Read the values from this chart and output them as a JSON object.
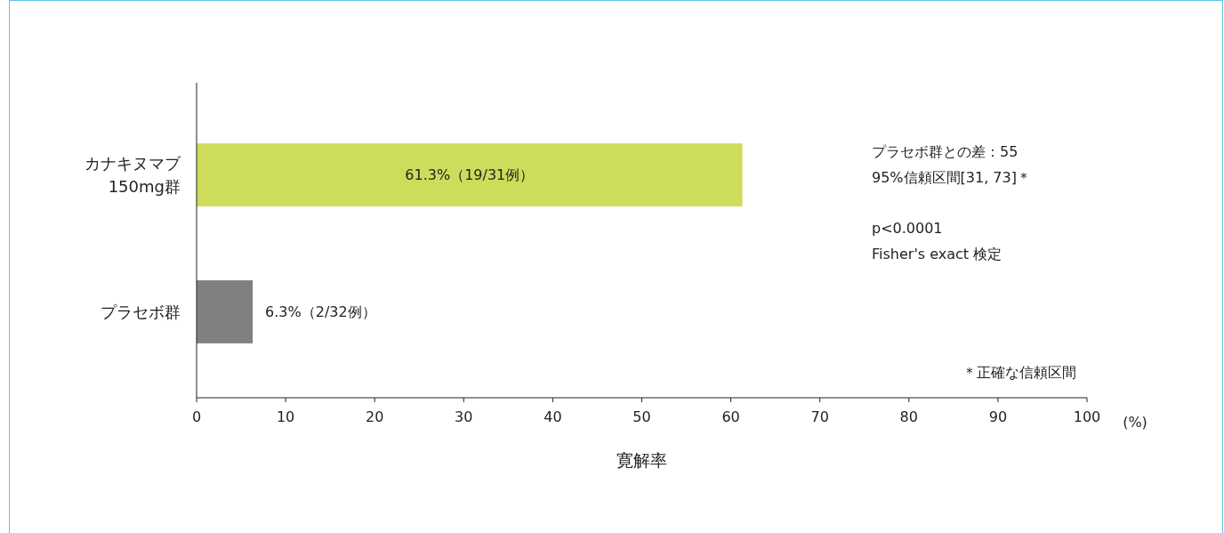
{
  "chart_data": {
    "type": "bar",
    "orientation": "horizontal",
    "categories": [
      "カナキヌマブ 150mg群",
      "プラセボ群"
    ],
    "values": [
      61.3,
      6.3
    ],
    "colors": [
      "#cddc5a",
      "#808083"
    ],
    "value_labels": [
      "61.3%（19/31例）",
      "6.3%（2/32例）"
    ],
    "xlim": [
      0,
      100
    ],
    "xticks": [
      0,
      10,
      20,
      30,
      40,
      50,
      60,
      70,
      80,
      90,
      100
    ],
    "xlabel": "寛解率",
    "annotations": [
      "プラセボ群との差：55",
      "95%信頼区間[31, 73]＊",
      "p<0.0001",
      "Fisher's exact 検定",
      "＊正確な信頼区間",
      "(%)"
    ]
  }
}
